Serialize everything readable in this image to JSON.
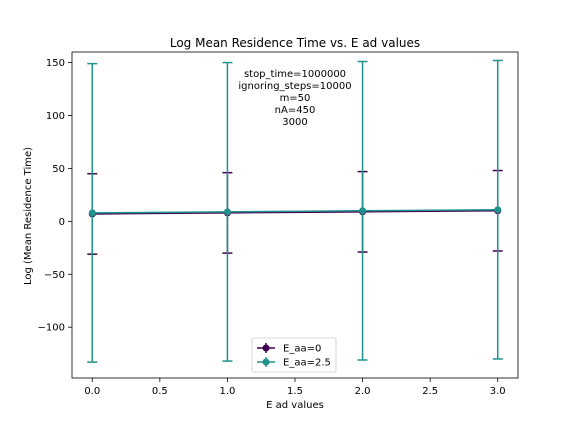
{
  "chart_data": {
    "type": "line",
    "title": "Log Mean Residence Time vs. E ad values",
    "xlabel": "E ad values",
    "ylabel": "Log (Mean Residence Time)",
    "xlim": [
      -0.15,
      3.15
    ],
    "ylim": [
      -148,
      160
    ],
    "xticks": [
      0.0,
      0.5,
      1.0,
      1.5,
      2.0,
      2.5,
      3.0
    ],
    "xtick_labels": [
      "0.0",
      "0.5",
      "1.0",
      "1.5",
      "2.0",
      "2.5",
      "3.0"
    ],
    "yticks": [
      -100,
      -50,
      0,
      50,
      100,
      150
    ],
    "ytick_labels": [
      "−100",
      "−50",
      "0",
      "50",
      "100",
      "150"
    ],
    "grid": false,
    "legend_position": "bottom-center",
    "annotation": [
      "stop_time=1000000",
      "ignoring_steps=10000",
      "m=50",
      "nA=450",
      "3000"
    ],
    "series": [
      {
        "name": "E_aa=0",
        "color": "#440154",
        "x": [
          0,
          1,
          2,
          3
        ],
        "y": [
          7,
          8,
          9,
          10
        ],
        "err_low": [
          -31,
          -30,
          -29,
          -28
        ],
        "err_high": [
          45,
          46,
          47,
          48
        ]
      },
      {
        "name": "E_aa=2.5",
        "color": "#21918c",
        "x": [
          0,
          1,
          2,
          3
        ],
        "y": [
          8,
          9,
          10,
          11
        ],
        "err_low": [
          -133,
          -132,
          -131,
          -130
        ],
        "err_high": [
          149,
          150,
          151,
          152
        ]
      }
    ]
  }
}
